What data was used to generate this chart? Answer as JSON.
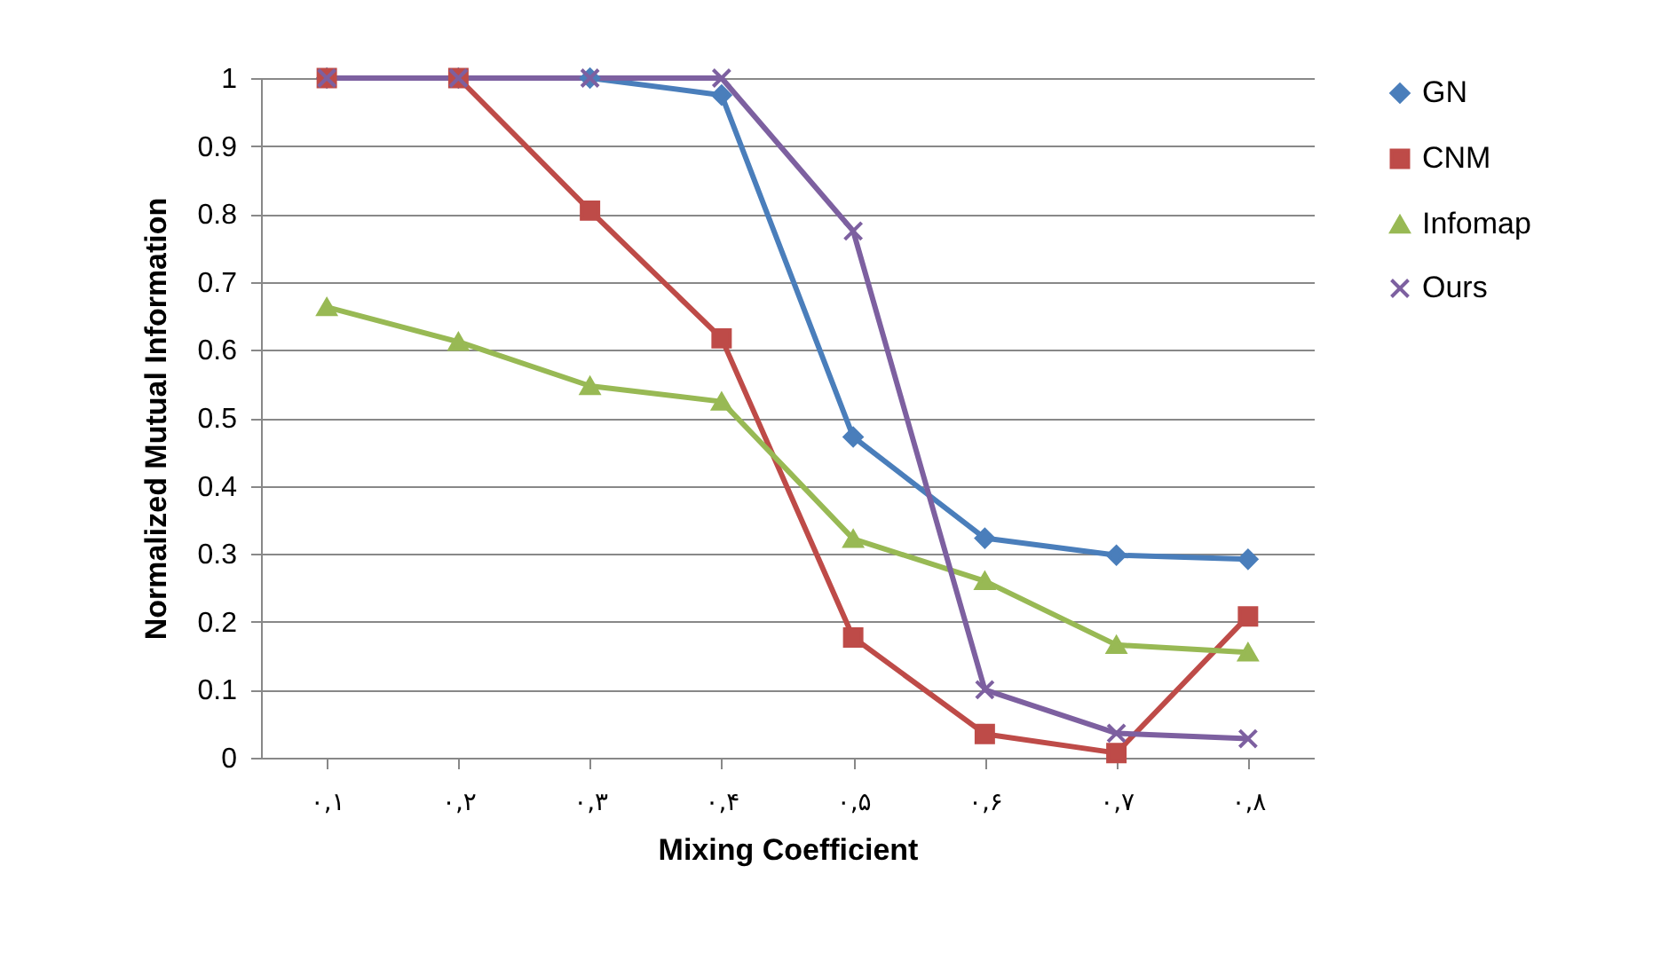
{
  "chart_data": {
    "type": "line",
    "xlabel": "Mixing Coefficient",
    "ylabel": "Normalized Mutual Information",
    "categories": [
      "۰,۱",
      "۰,۲",
      "۰,۳",
      "۰,۴",
      "۰,۵",
      "۰,۶",
      "۰,۷",
      "۰,۸"
    ],
    "series": [
      {
        "name": "GN",
        "color": "#4a7ebb",
        "marker": "diamond",
        "values": [
          1,
          1,
          1,
          0.975,
          0.472,
          0.323,
          0.298,
          0.292
        ]
      },
      {
        "name": "CNM",
        "color": "#be4b48",
        "marker": "square",
        "values": [
          1,
          1,
          0.805,
          0.617,
          0.177,
          0.035,
          0.007,
          0.208
        ]
      },
      {
        "name": "Infomap",
        "color": "#98b954",
        "marker": "triangle",
        "values": [
          0.663,
          0.612,
          0.547,
          0.524,
          0.322,
          0.26,
          0.166,
          0.155
        ]
      },
      {
        "name": "Ours",
        "color": "#7d60a0",
        "marker": "cross",
        "values": [
          1,
          1,
          1,
          1,
          0.775,
          0.1,
          0.036,
          0.028
        ]
      }
    ],
    "ylim": [
      0,
      1
    ],
    "yticks": [
      0,
      0.1,
      0.2,
      0.3,
      0.4,
      0.5,
      0.6,
      0.7,
      0.8,
      0.9,
      1
    ],
    "grid": "y",
    "legend": "right",
    "line_style": "solid"
  }
}
